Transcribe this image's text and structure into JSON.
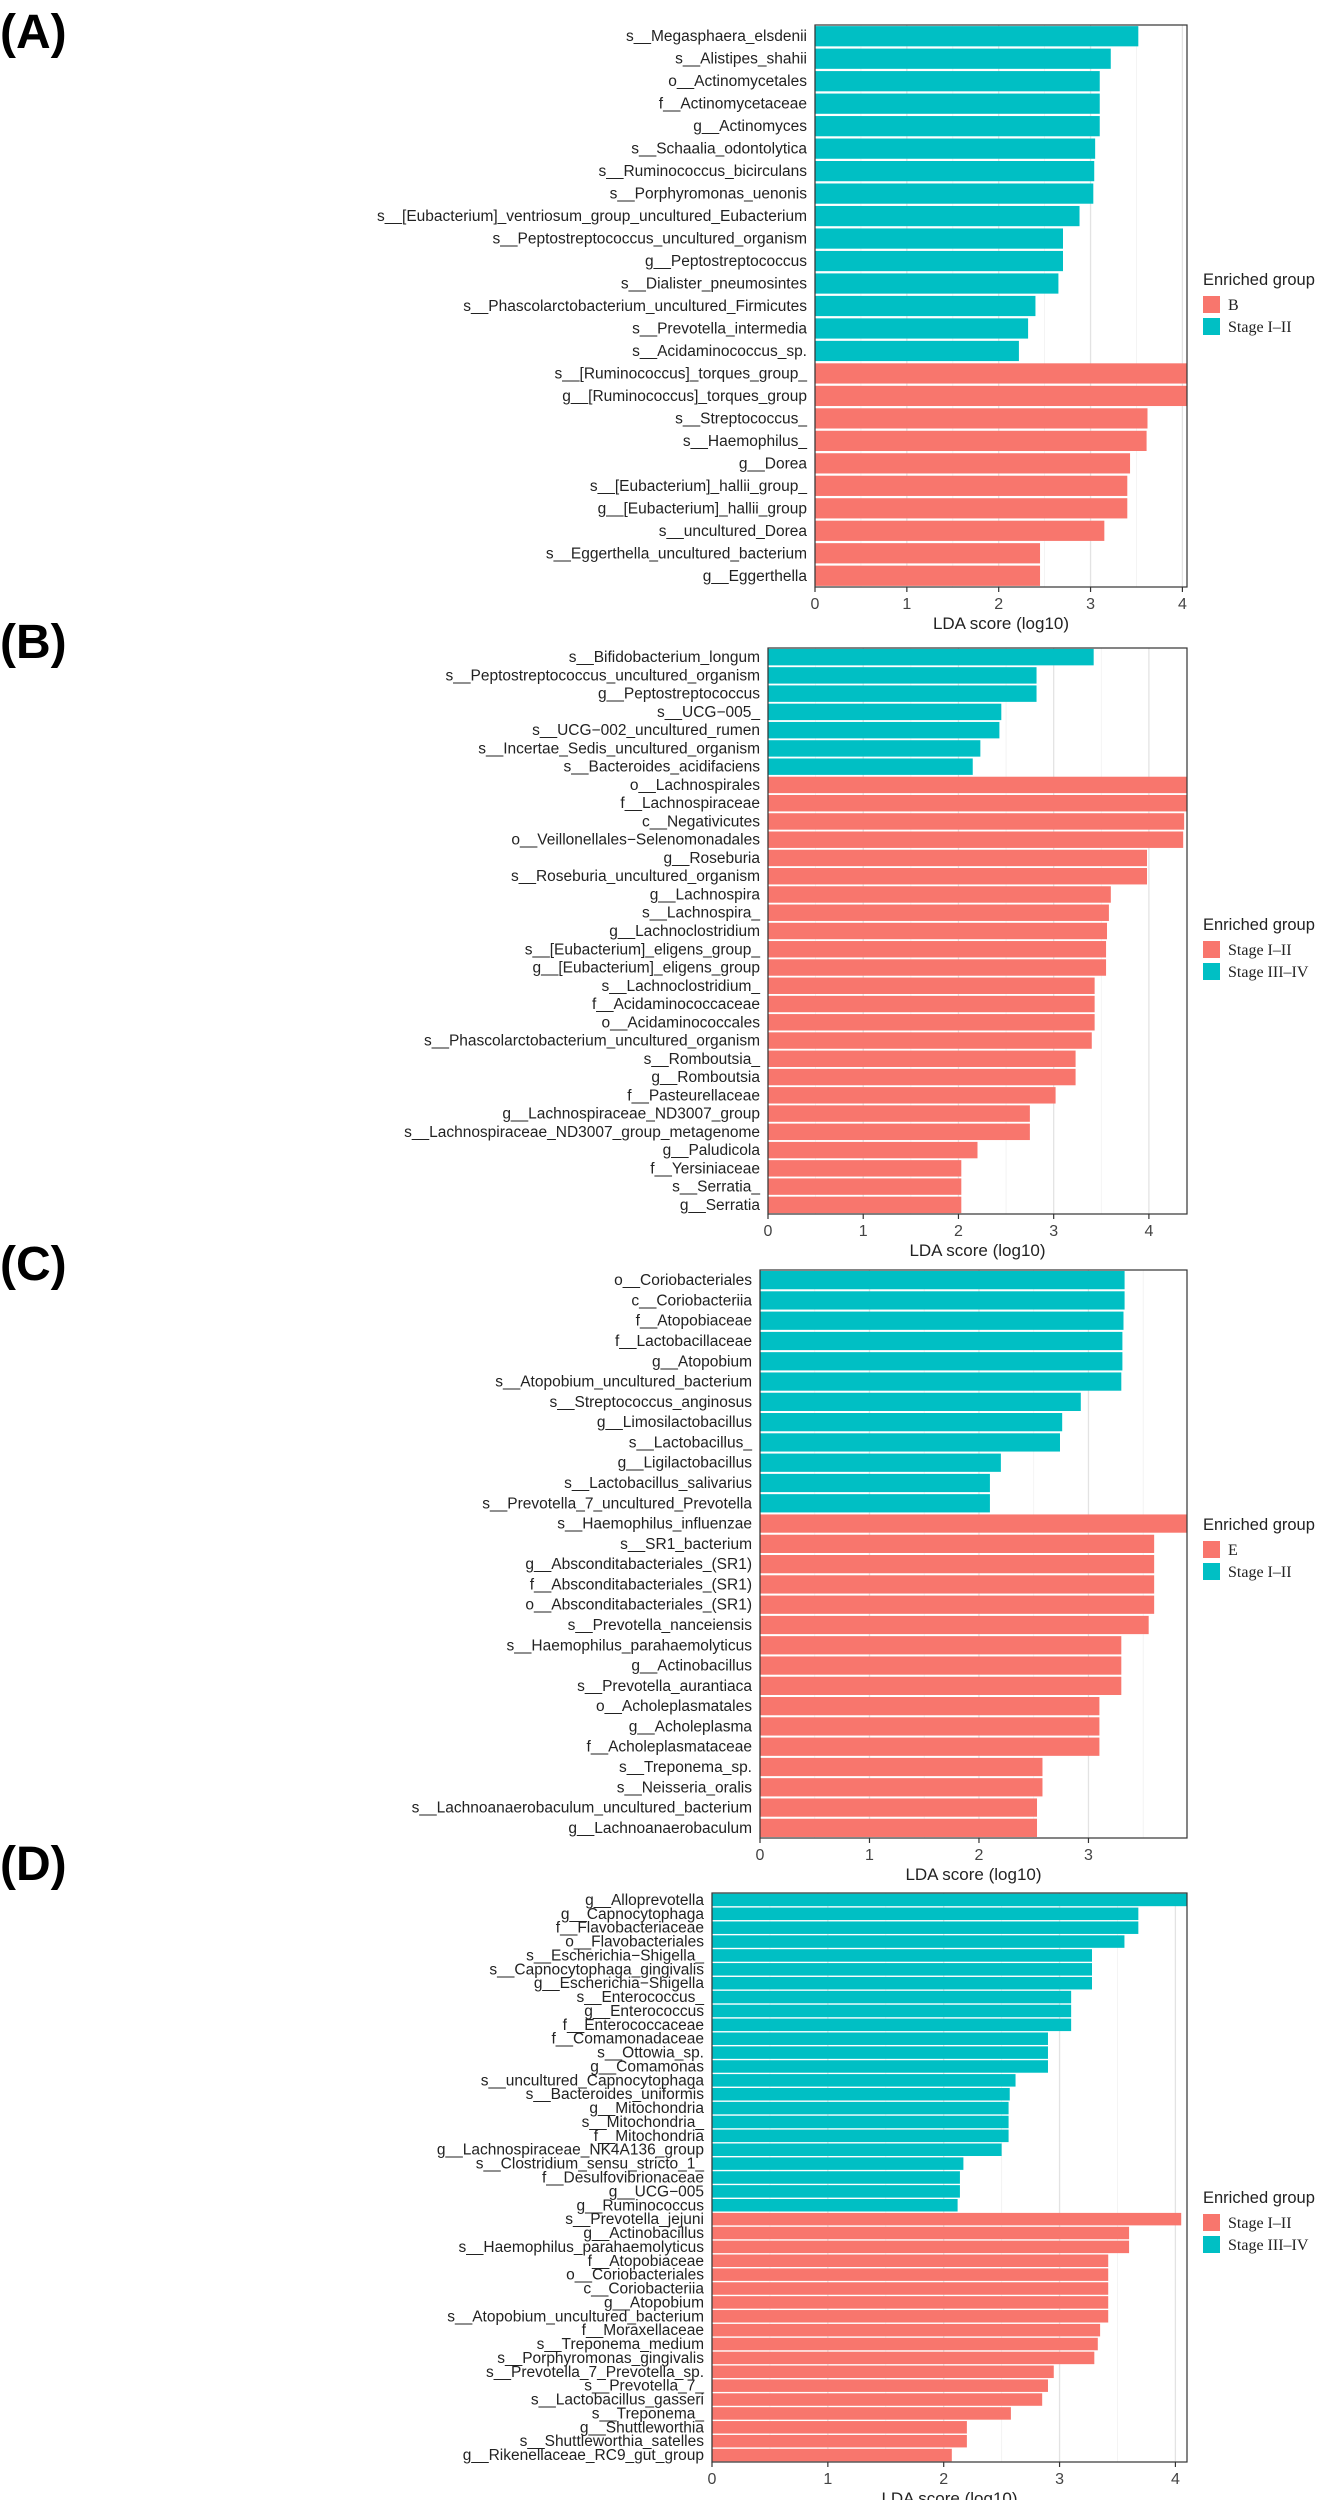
{
  "figure": {
    "panel_letters": [
      "(A)",
      "(B)",
      "(C)",
      "(D)"
    ]
  },
  "chart_data": [
    {
      "type": "bar",
      "orientation": "horizontal",
      "panel": "(A)",
      "xlabel": "LDA score (log10)",
      "xticks": [
        0,
        1,
        2,
        3,
        4
      ],
      "xlim": [
        0,
        4.05
      ],
      "legend_title": "Enriched group",
      "legend_groups": [
        {
          "name": "B",
          "color": "#F8766D"
        },
        {
          "name": "Stage I–II",
          "color": "#00BFC4"
        }
      ],
      "categories": [
        "s__Megasphaera_elsdenii",
        "s__Alistipes_shahii",
        "o__Actinomycetales",
        "f__Actinomycetaceae",
        "g__Actinomyces",
        "s__Schaalia_odontolytica",
        "s__Ruminococcus_bicirculans",
        "s__Porphyromonas_uenonis",
        "s__[Eubacterium]_ventriosum_group_uncultured_Eubacterium",
        "s__Peptostreptococcus_uncultured_organism",
        "g__Peptostreptococcus",
        "s__Dialister_pneumosintes",
        "s__Phascolarctobacterium_uncultured_Firmicutes",
        "s__Prevotella_intermedia",
        "s__Acidaminococcus_sp.",
        "s__[Ruminococcus]_torques_group_",
        "g__[Ruminococcus]_torques_group",
        "s__Streptococcus_",
        "s__Haemophilus_",
        "g__Dorea",
        "s__[Eubacterium]_hallii_group_",
        "g__[Eubacterium]_hallii_group",
        "s__uncultured_Dorea",
        "s__Eggerthella_uncultured_bacterium",
        "g__Eggerthella"
      ],
      "values": [
        3.52,
        3.22,
        3.1,
        3.1,
        3.1,
        3.05,
        3.04,
        3.03,
        2.88,
        2.7,
        2.7,
        2.65,
        2.4,
        2.32,
        2.22,
        4.05,
        4.05,
        3.62,
        3.61,
        3.43,
        3.4,
        3.4,
        3.15,
        2.45,
        2.45
      ],
      "groups": [
        "Stage I–II",
        "Stage I–II",
        "Stage I–II",
        "Stage I–II",
        "Stage I–II",
        "Stage I–II",
        "Stage I–II",
        "Stage I–II",
        "Stage I–II",
        "Stage I–II",
        "Stage I–II",
        "Stage I–II",
        "Stage I–II",
        "Stage I–II",
        "Stage I–II",
        "B",
        "B",
        "B",
        "B",
        "B",
        "B",
        "B",
        "B",
        "B",
        "B"
      ]
    },
    {
      "type": "bar",
      "orientation": "horizontal",
      "panel": "(B)",
      "xlabel": "LDA score (log10)",
      "xticks": [
        0,
        1,
        2,
        3,
        4
      ],
      "xlim": [
        0,
        4.4
      ],
      "legend_title": "Enriched group",
      "legend_groups": [
        {
          "name": "Stage I–II",
          "color": "#F8766D"
        },
        {
          "name": "Stage III–IV",
          "color": "#00BFC4"
        }
      ],
      "categories": [
        "s__Bifidobacterium_longum",
        "s__Peptostreptococcus_uncultured_organism",
        "g__Peptostreptococcus",
        "s__UCG−005_",
        "s__UCG−002_uncultured_rumen",
        "s__Incertae_Sedis_uncultured_organism",
        "s__Bacteroides_acidifaciens",
        "o__Lachnospirales",
        "f__Lachnospiraceae",
        "c__Negativicutes",
        "o__Veillonellales−Selenomonadales",
        "g__Roseburia",
        "s__Roseburia_uncultured_organism",
        "g__Lachnospira",
        "s__Lachnospira_",
        "g__Lachnoclostridium",
        "s__[Eubacterium]_eligens_group_",
        "g__[Eubacterium]_eligens_group",
        "s__Lachnoclostridium_",
        "f__Acidaminococcaceae",
        "o__Acidaminococcales",
        "s__Phascolarctobacterium_uncultured_organism",
        "s__Romboutsia_",
        "g__Romboutsia",
        "f__Pasteurellaceae",
        "g__Lachnospiraceae_ND3007_group",
        "s__Lachnospiraceae_ND3007_group_metagenome",
        "g__Paludicola",
        "f__Yersiniaceae",
        "s__Serratia_",
        "g__Serratia"
      ],
      "values": [
        3.42,
        2.82,
        2.82,
        2.45,
        2.43,
        2.23,
        2.15,
        4.4,
        4.4,
        4.37,
        4.36,
        3.98,
        3.98,
        3.6,
        3.58,
        3.56,
        3.55,
        3.55,
        3.43,
        3.43,
        3.43,
        3.4,
        3.23,
        3.23,
        3.02,
        2.75,
        2.75,
        2.2,
        2.03,
        2.03,
        2.03
      ],
      "groups": [
        "Stage III–IV",
        "Stage III–IV",
        "Stage III–IV",
        "Stage III–IV",
        "Stage III–IV",
        "Stage III–IV",
        "Stage III–IV",
        "Stage I–II",
        "Stage I–II",
        "Stage I–II",
        "Stage I–II",
        "Stage I–II",
        "Stage I–II",
        "Stage I–II",
        "Stage I–II",
        "Stage I–II",
        "Stage I–II",
        "Stage I–II",
        "Stage I–II",
        "Stage I–II",
        "Stage I–II",
        "Stage I–II",
        "Stage I–II",
        "Stage I–II",
        "Stage I–II",
        "Stage I–II",
        "Stage I–II",
        "Stage I–II",
        "Stage I–II",
        "Stage I–II",
        "Stage I–II"
      ]
    },
    {
      "type": "bar",
      "orientation": "horizontal",
      "panel": "(C)",
      "xlabel": "LDA score (log10)",
      "xticks": [
        0,
        1,
        2,
        3
      ],
      "xlim": [
        0,
        3.9
      ],
      "legend_title": "Enriched group",
      "legend_groups": [
        {
          "name": "E",
          "color": "#F8766D"
        },
        {
          "name": "Stage I–II",
          "color": "#00BFC4"
        }
      ],
      "categories": [
        "o__Coriobacteriales",
        "c__Coriobacteriia",
        "f__Atopobiaceae",
        "f__Lactobacillaceae",
        "g__Atopobium",
        "s__Atopobium_uncultured_bacterium",
        "s__Streptococcus_anginosus",
        "g__Limosilactobacillus",
        "s__Lactobacillus_",
        "g__Ligilactobacillus",
        "s__Lactobacillus_salivarius",
        "s__Prevotella_7_uncultured_Prevotella",
        "s__Haemophilus_influenzae",
        "s__SR1_bacterium",
        "g__Absconditabacteriales_(SR1)",
        "f__Absconditabacteriales_(SR1)",
        "o__Absconditabacteriales_(SR1)",
        "s__Prevotella_nanceiensis",
        "s__Haemophilus_parahaemolyticus",
        "g__Actinobacillus",
        "s__Prevotella_aurantiaca",
        "o__Acholeplasmatales",
        "g__Acholeplasma",
        "f__Acholeplasmataceae",
        "s__Treponema_sp.",
        "s__Neisseria_oralis",
        "s__Lachnoanaerobaculum_uncultured_bacterium",
        "g__Lachnoanaerobaculum"
      ],
      "values": [
        3.33,
        3.33,
        3.32,
        3.31,
        3.31,
        3.3,
        2.93,
        2.76,
        2.74,
        2.2,
        2.1,
        2.1,
        3.9,
        3.6,
        3.6,
        3.6,
        3.6,
        3.55,
        3.3,
        3.3,
        3.3,
        3.1,
        3.1,
        3.1,
        2.58,
        2.58,
        2.53,
        2.53
      ],
      "groups": [
        "Stage I–II",
        "Stage I–II",
        "Stage I–II",
        "Stage I–II",
        "Stage I–II",
        "Stage I–II",
        "Stage I–II",
        "Stage I–II",
        "Stage I–II",
        "Stage I–II",
        "Stage I–II",
        "Stage I–II",
        "E",
        "E",
        "E",
        "E",
        "E",
        "E",
        "E",
        "E",
        "E",
        "E",
        "E",
        "E",
        "E",
        "E",
        "E",
        "E"
      ]
    },
    {
      "type": "bar",
      "orientation": "horizontal",
      "panel": "(D)",
      "xlabel": "LDA score (log10)",
      "xticks": [
        0,
        1,
        2,
        3,
        4
      ],
      "xlim": [
        0,
        4.1
      ],
      "legend_title": "Enriched group",
      "legend_groups": [
        {
          "name": "Stage I–II",
          "color": "#F8766D"
        },
        {
          "name": "Stage III–IV",
          "color": "#00BFC4"
        }
      ],
      "categories": [
        "g__Alloprevotella",
        "g__Capnocytophaga",
        "f__Flavobacteriaceae",
        "o__Flavobacteriales",
        "s__Escherichia−Shigella_",
        "s__Capnocytophaga_gingivalis",
        "g__Escherichia−Shigella",
        "s__Enterococcus_",
        "g__Enterococcus",
        "f__Enterococcaceae",
        "f__Comamonadaceae",
        "s__Ottowia_sp.",
        "g__Comamonas",
        "s__uncultured_Capnocytophaga",
        "s__Bacteroides_uniformis",
        "g__Mitochondria",
        "s__Mitochondria_",
        "f__Mitochondria",
        "g__Lachnospiraceae_NK4A136_group",
        "s__Clostridium_sensu_stricto_1_",
        "f__Desulfovibrionaceae",
        "g__UCG−005",
        "g__Ruminococcus",
        "s__Prevotella_jejuni",
        "g__Actinobacillus",
        "s__Haemophilus_parahaemolyticus",
        "f__Atopobiaceae",
        "o__Coriobacteriales",
        "c__Coriobacteriia",
        "g__Atopobium",
        "s__Atopobium_uncultured_bacterium",
        "f__Moraxellaceae",
        "s__Treponema_medium",
        "s__Porphyromonas_gingivalis",
        "s__Prevotella_7_Prevotella_sp.",
        "s__Prevotella_7_",
        "s__Lactobacillus_gasseri",
        "s__Treponema_",
        "g__Shuttleworthia",
        "s__Shuttleworthia_satelles",
        "g__Rikenellaceae_RC9_gut_group"
      ],
      "values": [
        4.1,
        3.68,
        3.68,
        3.56,
        3.28,
        3.28,
        3.28,
        3.1,
        3.1,
        3.1,
        2.9,
        2.9,
        2.9,
        2.62,
        2.57,
        2.56,
        2.56,
        2.56,
        2.5,
        2.17,
        2.14,
        2.14,
        2.12,
        4.05,
        3.6,
        3.6,
        3.42,
        3.42,
        3.42,
        3.42,
        3.42,
        3.35,
        3.33,
        3.3,
        2.95,
        2.9,
        2.85,
        2.58,
        2.2,
        2.2,
        2.07
      ],
      "groups": [
        "Stage III–IV",
        "Stage III–IV",
        "Stage III–IV",
        "Stage III–IV",
        "Stage III–IV",
        "Stage III–IV",
        "Stage III–IV",
        "Stage III–IV",
        "Stage III–IV",
        "Stage III–IV",
        "Stage III–IV",
        "Stage III–IV",
        "Stage III–IV",
        "Stage III–IV",
        "Stage III–IV",
        "Stage III–IV",
        "Stage III–IV",
        "Stage III–IV",
        "Stage III–IV",
        "Stage III–IV",
        "Stage III–IV",
        "Stage III–IV",
        "Stage III–IV",
        "Stage I–II",
        "Stage I–II",
        "Stage I–II",
        "Stage I–II",
        "Stage I–II",
        "Stage I–II",
        "Stage I–II",
        "Stage I–II",
        "Stage I–II",
        "Stage I–II",
        "Stage I–II",
        "Stage I–II",
        "Stage I–II",
        "Stage I–II",
        "Stage I–II",
        "Stage I–II",
        "Stage I–II",
        "Stage I–II"
      ]
    }
  ]
}
